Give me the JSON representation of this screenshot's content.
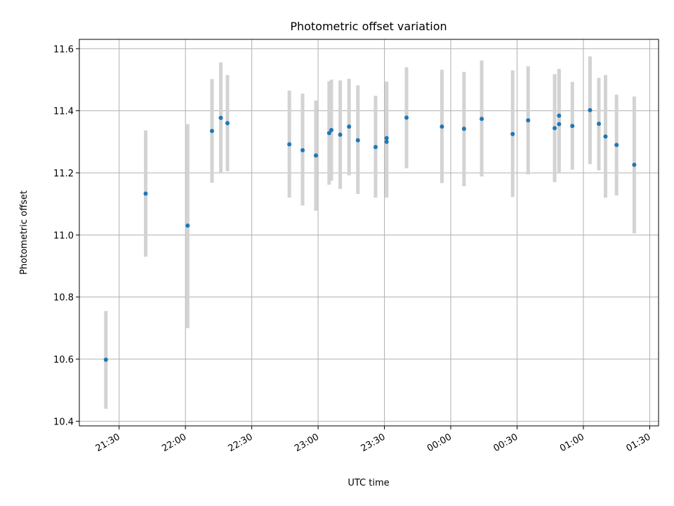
{
  "chart_data": {
    "type": "scatter",
    "title": "Photometric offset variation",
    "xlabel": "UTC time",
    "ylabel": "Photometric offset",
    "x_tick_labels": [
      "21:30",
      "22:00",
      "22:30",
      "23:00",
      "23:30",
      "00:00",
      "00:30",
      "01:00",
      "01:30"
    ],
    "x_tick_values": [
      "21:30",
      "22:00",
      "22:30",
      "23:00",
      "23:30",
      "00:00",
      "00:30",
      "01:00",
      "01:30"
    ],
    "y_tick_labels": [
      "10.4",
      "10.6",
      "10.8",
      "11.0",
      "11.2",
      "11.4",
      "11.6"
    ],
    "y_tick_values": [
      10.4,
      10.6,
      10.8,
      11.0,
      11.2,
      11.4,
      11.6
    ],
    "xlim": [
      "21:12",
      "01:34"
    ],
    "ylim": [
      10.385,
      11.63
    ],
    "grid": true,
    "x_tick_rotation": "30 degrees",
    "colors": {
      "marker": "#1f77b4",
      "errorbar": "#d3d3d3",
      "grid": "#b0b0b0"
    },
    "points": [
      {
        "x": "21:24",
        "y": 10.598,
        "ymin": 10.44,
        "ymax": 10.755
      },
      {
        "x": "21:42",
        "y": 11.133,
        "ymin": 10.93,
        "ymax": 11.337
      },
      {
        "x": "22:01",
        "y": 11.03,
        "ymin": 10.7,
        "ymax": 11.357
      },
      {
        "x": "22:12",
        "y": 11.335,
        "ymin": 11.168,
        "ymax": 11.502
      },
      {
        "x": "22:16",
        "y": 11.377,
        "ymin": 11.2,
        "ymax": 11.556
      },
      {
        "x": "22:19",
        "y": 11.36,
        "ymin": 11.205,
        "ymax": 11.515
      },
      {
        "x": "22:47",
        "y": 11.292,
        "ymin": 11.12,
        "ymax": 11.465
      },
      {
        "x": "22:53",
        "y": 11.273,
        "ymin": 11.095,
        "ymax": 11.455
      },
      {
        "x": "22:59",
        "y": 11.256,
        "ymin": 11.078,
        "ymax": 11.433
      },
      {
        "x": "23:05",
        "y": 11.328,
        "ymin": 11.162,
        "ymax": 11.495
      },
      {
        "x": "23:06",
        "y": 11.338,
        "ymin": 11.175,
        "ymax": 11.5
      },
      {
        "x": "23:10",
        "y": 11.323,
        "ymin": 11.148,
        "ymax": 11.498
      },
      {
        "x": "23:14",
        "y": 11.349,
        "ymin": 11.192,
        "ymax": 11.503
      },
      {
        "x": "23:18",
        "y": 11.305,
        "ymin": 11.132,
        "ymax": 11.482
      },
      {
        "x": "23:26",
        "y": 11.283,
        "ymin": 11.12,
        "ymax": 11.448
      },
      {
        "x": "23:31",
        "y": 11.312,
        "ymin": 11.135,
        "ymax": 11.494
      },
      {
        "x": "23:31",
        "y": 11.3,
        "ymin": 11.12,
        "ymax": 11.48
      },
      {
        "x": "23:40",
        "y": 11.378,
        "ymin": 11.215,
        "ymax": 11.54
      },
      {
        "x": "23:56",
        "y": 11.349,
        "ymin": 11.167,
        "ymax": 11.532
      },
      {
        "x": "00:06",
        "y": 11.342,
        "ymin": 11.157,
        "ymax": 11.525
      },
      {
        "x": "00:14",
        "y": 11.374,
        "ymin": 11.188,
        "ymax": 11.562
      },
      {
        "x": "00:28",
        "y": 11.325,
        "ymin": 11.122,
        "ymax": 11.53
      },
      {
        "x": "00:35",
        "y": 11.369,
        "ymin": 11.195,
        "ymax": 11.543
      },
      {
        "x": "00:47",
        "y": 11.344,
        "ymin": 11.17,
        "ymax": 11.518
      },
      {
        "x": "00:49",
        "y": 11.357,
        "ymin": 11.2,
        "ymax": 11.528
      },
      {
        "x": "00:49",
        "y": 11.384,
        "ymin": 11.232,
        "ymax": 11.535
      },
      {
        "x": "00:55",
        "y": 11.351,
        "ymin": 11.21,
        "ymax": 11.493
      },
      {
        "x": "01:03",
        "y": 11.402,
        "ymin": 11.228,
        "ymax": 11.575
      },
      {
        "x": "01:07",
        "y": 11.358,
        "ymin": 11.208,
        "ymax": 11.506
      },
      {
        "x": "01:10",
        "y": 11.317,
        "ymin": 11.12,
        "ymax": 11.515
      },
      {
        "x": "01:15",
        "y": 11.29,
        "ymin": 11.127,
        "ymax": 11.452
      },
      {
        "x": "01:23",
        "y": 11.226,
        "ymin": 11.005,
        "ymax": 11.446
      }
    ]
  }
}
